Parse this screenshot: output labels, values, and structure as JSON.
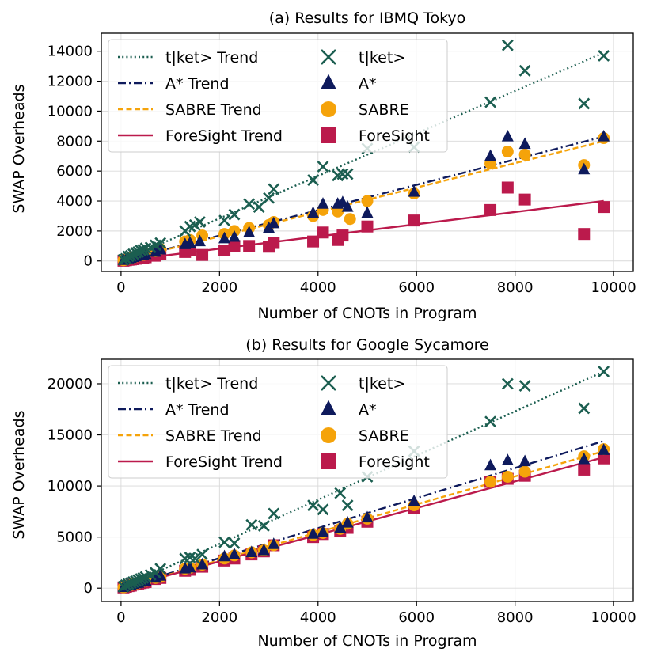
{
  "colors": {
    "tket": "#1b5e50",
    "astar": "#0e1a5c",
    "sabre": "#f5a30a",
    "foresight": "#bb1a4c",
    "grid": "#d9d9d9",
    "axis": "#000000"
  },
  "chart_data": [
    {
      "type": "scatter",
      "title": "(a) Results for IBMQ Tokyo",
      "xlabel": "Number of CNOTs in Program",
      "ylabel": "SWAP Overheads",
      "xlim": [
        -400,
        10400
      ],
      "ylim": [
        -700,
        15200
      ],
      "xticks": [
        0,
        2000,
        4000,
        6000,
        8000,
        10000
      ],
      "xtick_labels": [
        "0",
        "2000",
        "4000",
        "6000",
        "8000",
        "10000"
      ],
      "yticks": [
        0,
        2000,
        4000,
        6000,
        8000,
        10000,
        12000,
        14000
      ],
      "ytick_labels": [
        "0",
        "2000",
        "4000",
        "6000",
        "8000",
        "10000",
        "12000",
        "14000"
      ],
      "grid": true,
      "legend_position": "top-left",
      "legend_columns": 2,
      "legend": [
        {
          "key": "tket_trend",
          "label": "t|ket> Trend",
          "kind": "line",
          "style": "dotted",
          "color": "tket"
        },
        {
          "key": "astar_trend",
          "label": "A* Trend",
          "kind": "line",
          "style": "dashdot",
          "color": "astar"
        },
        {
          "key": "sabre_trend",
          "label": "SABRE Trend",
          "kind": "line",
          "style": "dashed",
          "color": "sabre"
        },
        {
          "key": "foresight_trend",
          "label": "ForeSight Trend",
          "kind": "line",
          "style": "solid",
          "color": "foresight"
        },
        {
          "key": "tket",
          "label": "t|ket>",
          "kind": "marker",
          "marker": "x",
          "color": "tket"
        },
        {
          "key": "astar",
          "label": "A*",
          "kind": "marker",
          "marker": "triangle",
          "color": "astar"
        },
        {
          "key": "sabre",
          "label": "SABRE",
          "kind": "marker",
          "marker": "circle",
          "color": "sabre"
        },
        {
          "key": "foresight",
          "label": "ForeSight",
          "kind": "marker",
          "marker": "square",
          "color": "foresight"
        }
      ],
      "trends": [
        {
          "key": "tket_trend",
          "x": [
            0,
            9800
          ],
          "y": [
            0,
            13900
          ]
        },
        {
          "key": "astar_trend",
          "x": [
            0,
            9800
          ],
          "y": [
            0,
            8300
          ]
        },
        {
          "key": "sabre_trend",
          "x": [
            0,
            9800
          ],
          "y": [
            0,
            8000
          ]
        },
        {
          "key": "foresight_trend",
          "x": [
            0,
            9800
          ],
          "y": [
            0,
            4000
          ]
        }
      ],
      "series": [
        {
          "key": "tket",
          "name": "t|ket>",
          "x": [
            50,
            100,
            150,
            200,
            250,
            300,
            350,
            400,
            450,
            500,
            600,
            700,
            800,
            1300,
            1400,
            1500,
            1600,
            2100,
            2300,
            2600,
            2800,
            3000,
            3100,
            3900,
            4100,
            4400,
            4500,
            4600,
            5000,
            5950,
            7500,
            7850,
            8200,
            9400,
            9800
          ],
          "y": [
            80,
            150,
            300,
            350,
            450,
            550,
            600,
            700,
            750,
            850,
            900,
            1050,
            1200,
            2000,
            2300,
            2400,
            2600,
            2700,
            3100,
            3800,
            3600,
            4200,
            4800,
            5400,
            6300,
            5700,
            5800,
            5800,
            7500,
            7600,
            10600,
            14400,
            12700,
            10500,
            13700
          ]
        },
        {
          "key": "astar",
          "name": "A*",
          "x": [
            50,
            100,
            150,
            200,
            250,
            300,
            350,
            400,
            450,
            500,
            700,
            800,
            1300,
            1400,
            1600,
            2100,
            2300,
            2600,
            3000,
            3100,
            3900,
            4100,
            4400,
            4500,
            4600,
            5000,
            5950,
            7500,
            7850,
            8200,
            9400,
            9800
          ],
          "y": [
            50,
            100,
            150,
            200,
            250,
            300,
            350,
            400,
            400,
            450,
            600,
            750,
            1100,
            1200,
            1300,
            1500,
            1600,
            1900,
            2200,
            2500,
            3200,
            3800,
            3800,
            3900,
            3600,
            3200,
            4600,
            7000,
            8300,
            7800,
            6100,
            8300
          ]
        },
        {
          "key": "sabre",
          "name": "SABRE",
          "x": [
            50,
            100,
            150,
            200,
            250,
            300,
            350,
            400,
            450,
            500,
            700,
            800,
            1300,
            1400,
            1650,
            2100,
            2300,
            2600,
            3000,
            3100,
            3900,
            4100,
            4400,
            4650,
            5000,
            5950,
            7500,
            7850,
            8200,
            9400,
            9800
          ],
          "y": [
            50,
            100,
            150,
            200,
            250,
            300,
            350,
            400,
            400,
            450,
            650,
            800,
            1300,
            1400,
            1700,
            1800,
            2000,
            2200,
            2400,
            2600,
            3000,
            3400,
            3300,
            2800,
            4000,
            4500,
            6500,
            7300,
            7100,
            6400,
            8200
          ]
        },
        {
          "key": "foresight",
          "name": "ForeSight",
          "x": [
            50,
            100,
            150,
            200,
            250,
            300,
            350,
            400,
            450,
            500,
            700,
            800,
            1300,
            1400,
            1650,
            2100,
            2300,
            2600,
            3000,
            3100,
            3900,
            4100,
            4400,
            4500,
            5000,
            5950,
            7500,
            7850,
            8200,
            9400,
            9800
          ],
          "y": [
            20,
            50,
            80,
            100,
            120,
            150,
            180,
            200,
            220,
            250,
            350,
            450,
            600,
            700,
            400,
            700,
            1000,
            1000,
            950,
            1200,
            1300,
            1900,
            1400,
            1700,
            2300,
            2700,
            3400,
            4900,
            4100,
            1800,
            3600
          ]
        }
      ]
    },
    {
      "type": "scatter",
      "title": "(b) Results for Google Sycamore",
      "xlabel": "Number of CNOTs in Program",
      "ylabel": "SWAP Overheads",
      "xlim": [
        -400,
        10400
      ],
      "ylim": [
        -1300,
        22400
      ],
      "xticks": [
        0,
        2000,
        4000,
        6000,
        8000,
        10000
      ],
      "xtick_labels": [
        "0",
        "2000",
        "4000",
        "6000",
        "8000",
        "10000"
      ],
      "yticks": [
        0,
        5000,
        10000,
        15000,
        20000
      ],
      "ytick_labels": [
        "0",
        "5000",
        "10000",
        "15000",
        "20000"
      ],
      "grid": true,
      "legend_position": "top-left",
      "legend_columns": 2,
      "legend": [
        {
          "key": "tket_trend",
          "label": "t|ket> Trend",
          "kind": "line",
          "style": "dotted",
          "color": "tket"
        },
        {
          "key": "astar_trend",
          "label": "A* Trend",
          "kind": "line",
          "style": "dashdot",
          "color": "astar"
        },
        {
          "key": "sabre_trend",
          "label": "SABRE Trend",
          "kind": "line",
          "style": "dashed",
          "color": "sabre"
        },
        {
          "key": "foresight_trend",
          "label": "ForeSight Trend",
          "kind": "line",
          "style": "solid",
          "color": "foresight"
        },
        {
          "key": "tket",
          "label": "t|ket>",
          "kind": "marker",
          "marker": "x",
          "color": "tket"
        },
        {
          "key": "astar",
          "label": "A*",
          "kind": "marker",
          "marker": "triangle",
          "color": "astar"
        },
        {
          "key": "sabre",
          "label": "SABRE",
          "kind": "marker",
          "marker": "circle",
          "color": "sabre"
        },
        {
          "key": "foresight",
          "label": "ForeSight",
          "kind": "marker",
          "marker": "square",
          "color": "foresight"
        }
      ],
      "trends": [
        {
          "key": "tket_trend",
          "x": [
            0,
            9800
          ],
          "y": [
            0,
            21200
          ]
        },
        {
          "key": "astar_trend",
          "x": [
            0,
            9800
          ],
          "y": [
            0,
            14400
          ]
        },
        {
          "key": "sabre_trend",
          "x": [
            0,
            9800
          ],
          "y": [
            0,
            13400
          ]
        },
        {
          "key": "foresight_trend",
          "x": [
            0,
            9800
          ],
          "y": [
            0,
            12800
          ]
        }
      ],
      "series": [
        {
          "key": "tket",
          "name": "t|ket>",
          "x": [
            50,
            100,
            150,
            200,
            250,
            300,
            350,
            400,
            450,
            500,
            600,
            700,
            800,
            1300,
            1400,
            1500,
            1650,
            2100,
            2300,
            2650,
            2900,
            3100,
            3900,
            4100,
            4450,
            4600,
            5000,
            5950,
            7500,
            7850,
            8200,
            9400,
            9800
          ],
          "y": [
            150,
            300,
            400,
            500,
            600,
            700,
            800,
            900,
            1000,
            1100,
            1300,
            1500,
            1900,
            2900,
            3000,
            2900,
            3300,
            4500,
            4400,
            6200,
            6100,
            7300,
            8100,
            7700,
            9300,
            8100,
            10900,
            13400,
            16300,
            20000,
            19800,
            17600,
            21200
          ]
        },
        {
          "key": "astar",
          "name": "A*",
          "x": [
            50,
            100,
            150,
            200,
            250,
            300,
            350,
            400,
            450,
            500,
            700,
            800,
            1300,
            1400,
            1650,
            2100,
            2300,
            2650,
            2900,
            3100,
            3900,
            4100,
            4450,
            4600,
            5000,
            5950,
            7500,
            7850,
            8200,
            9400,
            9800
          ],
          "y": [
            80,
            150,
            250,
            300,
            400,
            450,
            500,
            600,
            650,
            700,
            1000,
            1200,
            1900,
            2000,
            2300,
            3100,
            3300,
            3500,
            3700,
            4300,
            5300,
            5500,
            5900,
            6400,
            6900,
            8500,
            12000,
            12500,
            12400,
            12600,
            13500
          ]
        },
        {
          "key": "sabre",
          "name": "SABRE",
          "x": [
            50,
            100,
            150,
            200,
            250,
            300,
            350,
            400,
            450,
            500,
            700,
            800,
            1300,
            1400,
            1650,
            2100,
            2300,
            2650,
            2900,
            3100,
            3900,
            4100,
            4450,
            4600,
            5000,
            5950,
            7500,
            7850,
            8200,
            9400,
            9800
          ],
          "y": [
            80,
            150,
            250,
            300,
            400,
            450,
            500,
            600,
            650,
            700,
            1000,
            1100,
            1900,
            2000,
            2300,
            2900,
            3200,
            3500,
            3700,
            4200,
            5200,
            5400,
            5800,
            6300,
            6800,
            8100,
            10400,
            10900,
            11400,
            12900,
            13600
          ]
        },
        {
          "key": "foresight",
          "name": "ForeSight",
          "x": [
            50,
            100,
            150,
            200,
            250,
            300,
            350,
            400,
            450,
            500,
            700,
            800,
            1300,
            1400,
            1650,
            2100,
            2300,
            2650,
            2900,
            3100,
            3900,
            4100,
            4450,
            4600,
            5000,
            5950,
            7500,
            7850,
            8200,
            9400,
            9800
          ],
          "y": [
            70,
            130,
            200,
            250,
            350,
            400,
            450,
            500,
            550,
            600,
            900,
            1000,
            1700,
            1800,
            2100,
            2700,
            2900,
            3300,
            3600,
            4200,
            5000,
            5300,
            5600,
            5900,
            6500,
            7800,
            10400,
            10700,
            11000,
            11600,
            12700
          ]
        }
      ]
    }
  ]
}
